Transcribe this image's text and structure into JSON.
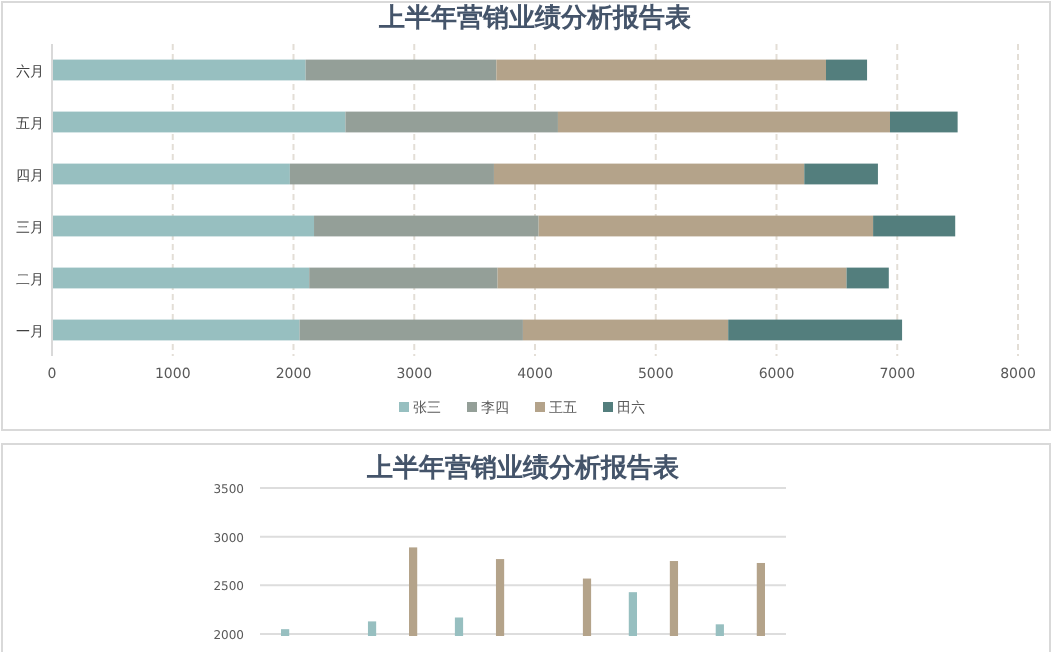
{
  "chart_data": [
    {
      "type": "bar",
      "title": "上半年营销业绩分析报告表",
      "orientation": "horizontal",
      "stacked": true,
      "categories": [
        "六月",
        "五月",
        "四月",
        "三月",
        "二月",
        "一月"
      ],
      "series": [
        {
          "name": "张三",
          "color": "#97bfc0",
          "values": [
            2100,
            2430,
            1970,
            2170,
            2130,
            2050
          ]
        },
        {
          "name": "李四",
          "color": "#949f98",
          "values": [
            1580,
            1760,
            1690,
            1860,
            1560,
            1850
          ]
        },
        {
          "name": "王五",
          "color": "#b4a38a",
          "values": [
            2730,
            2750,
            2570,
            2770,
            2890,
            1700
          ]
        },
        {
          "name": "田六",
          "color": "#537e7d",
          "values": [
            340,
            560,
            610,
            680,
            350,
            1440
          ]
        }
      ],
      "xlim": [
        0,
        8000
      ],
      "xticks": [
        0,
        1000,
        2000,
        3000,
        4000,
        5000,
        6000,
        7000,
        8000
      ],
      "grid": "x",
      "legend": "bottom"
    },
    {
      "type": "bar",
      "title": "上半年营销业绩分析报告表",
      "categories": [
        null,
        null,
        null,
        null,
        null,
        null
      ],
      "series": [
        {
          "color": "#97bfc0",
          "values": [
            2050,
            2130,
            2170,
            null,
            2430,
            2100
          ]
        },
        {
          "color": "#b4a38a",
          "values": [
            null,
            2890,
            2770,
            2570,
            2750,
            2730
          ]
        }
      ],
      "ylim": [
        1980,
        3500
      ],
      "yticks": [
        2000,
        2500,
        3000,
        3500
      ],
      "grid": "y",
      "tick_labels": "y"
    }
  ]
}
